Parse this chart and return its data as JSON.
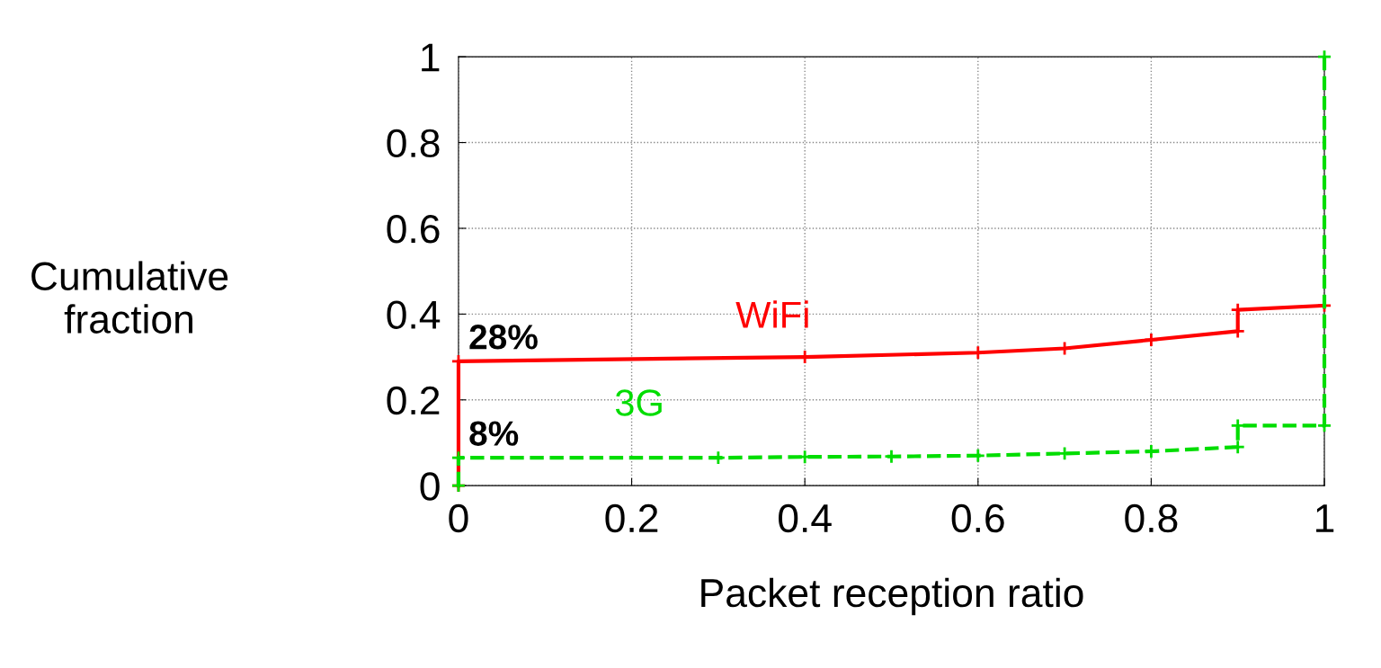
{
  "chart_data": {
    "type": "line",
    "xlabel": "Packet reception ratio",
    "ylabel": "Cumulative\nfraction",
    "xlim": [
      0,
      1
    ],
    "ylim": [
      0,
      1
    ],
    "xticks": [
      0,
      0.2,
      0.4,
      0.6,
      0.8,
      1
    ],
    "yticks": [
      0,
      0.2,
      0.4,
      0.6,
      0.8,
      1
    ],
    "grid": true,
    "marker": "cross",
    "series": [
      {
        "name": "WiFi",
        "color": "#ff0000",
        "line_style": "solid",
        "x": [
          0,
          0,
          0.4,
          0.6,
          0.7,
          0.8,
          0.9,
          0.9,
          1
        ],
        "values": [
          0,
          0.29,
          0.3,
          0.31,
          0.32,
          0.34,
          0.36,
          0.41,
          0.42
        ]
      },
      {
        "name": "3G",
        "color": "#00dd00",
        "line_style": "dashed",
        "x": [
          0,
          0,
          0.3,
          0.4,
          0.5,
          0.6,
          0.7,
          0.8,
          0.9,
          0.9,
          1,
          1
        ],
        "values": [
          0,
          0.065,
          0.065,
          0.067,
          0.068,
          0.07,
          0.075,
          0.08,
          0.09,
          0.14,
          0.14,
          1
        ]
      }
    ],
    "annotations": [
      {
        "text": "28%",
        "x": 0,
        "y": 0.29
      },
      {
        "text": "8%",
        "x": 0,
        "y": 0.065
      }
    ]
  }
}
